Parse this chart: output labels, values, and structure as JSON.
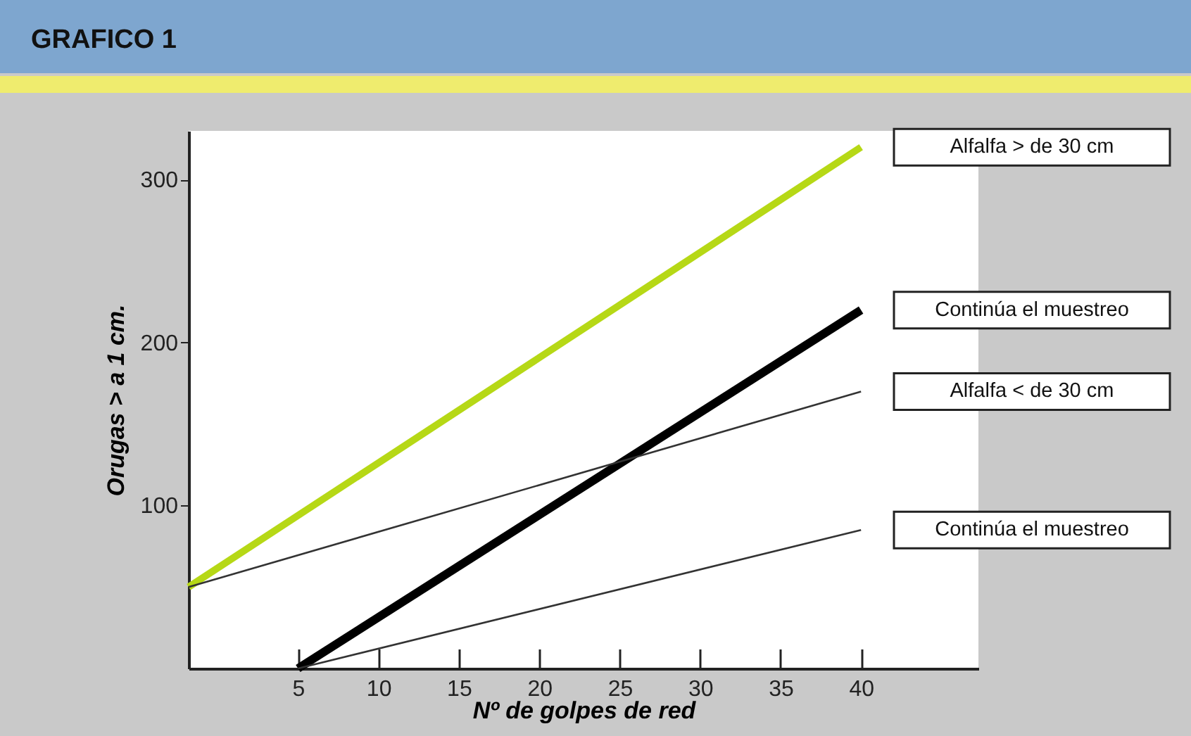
{
  "chart_data": {
    "type": "line",
    "title": "GRAFICO 1",
    "xlabel": "Nº de golpes de red",
    "ylabel": "Orugas > a 1 cm.",
    "xlim": [
      -1.8,
      47.3
    ],
    "ylim": [
      0,
      330
    ],
    "xticks": [
      5,
      10,
      15,
      20,
      25,
      30,
      35,
      40
    ],
    "yticks": [
      100,
      200,
      300
    ],
    "grid": false,
    "legend": false,
    "series": [
      {
        "name": "Alfalfa > de 30 cm",
        "color": "#b6d816",
        "x": [
          -1.8,
          40
        ],
        "values": [
          50,
          320
        ]
      },
      {
        "name": "Continúa el muestreo",
        "color": "#000000",
        "x": [
          5,
          40
        ],
        "values": [
          0,
          220
        ]
      },
      {
        "name": "Alfalfa < de 30 cm",
        "color": "#333333",
        "x": [
          -1.8,
          40
        ],
        "values": [
          50,
          170
        ]
      },
      {
        "name": "Continúa el muestreo",
        "color": "#333333",
        "x": [
          5,
          40
        ],
        "values": [
          0,
          85
        ]
      }
    ]
  }
}
